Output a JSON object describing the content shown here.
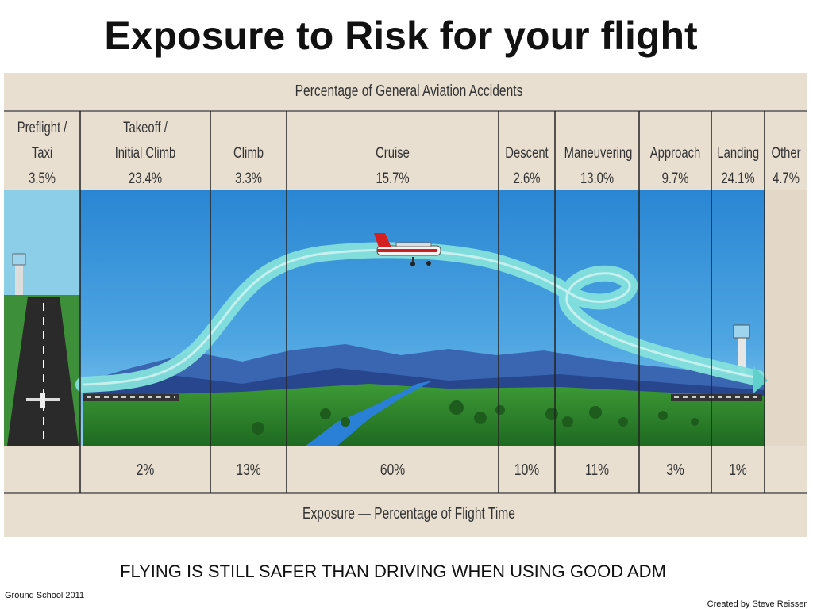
{
  "title": "Exposure to Risk for your flight",
  "accidents_header": "Percentage of General Aviation Accidents",
  "exposure_header": "Exposure — Percentage of Flight Time",
  "phases": [
    {
      "name_lines": [
        "Preflight /",
        "Taxi"
      ],
      "accident_pct": "3.5%",
      "exposure_pct": ""
    },
    {
      "name_lines": [
        "Takeoff /",
        "Initial Climb"
      ],
      "accident_pct": "23.4%",
      "exposure_pct": "2%"
    },
    {
      "name_lines": [
        "",
        "Climb"
      ],
      "accident_pct": "3.3%",
      "exposure_pct": "13%"
    },
    {
      "name_lines": [
        "",
        "Cruise"
      ],
      "accident_pct": "15.7%",
      "exposure_pct": "60%"
    },
    {
      "name_lines": [
        "",
        "Descent"
      ],
      "accident_pct": "2.6%",
      "exposure_pct": "10%"
    },
    {
      "name_lines": [
        "",
        "Maneuvering"
      ],
      "accident_pct": "13.0%",
      "exposure_pct": "11%"
    },
    {
      "name_lines": [
        "",
        "Approach"
      ],
      "accident_pct": "9.7%",
      "exposure_pct": "3%"
    },
    {
      "name_lines": [
        "",
        "Landing"
      ],
      "accident_pct": "24.1%",
      "exposure_pct": "1%"
    },
    {
      "name_lines": [
        "",
        "Other"
      ],
      "accident_pct": "4.7%",
      "exposure_pct": ""
    }
  ],
  "tagline": "FLYING IS STILL SAFER THAN DRIVING WHEN USING GOOD ADM",
  "footer_left": "Ground School 2011",
  "footer_right": "Created by Steve Reisser",
  "colors": {
    "sky": "#2d8fd6",
    "header_band": "#e9dfd0",
    "flight_path": "#7fe0dc",
    "grass": "#2f8a2a",
    "mountains": "#2c4f9c"
  }
}
